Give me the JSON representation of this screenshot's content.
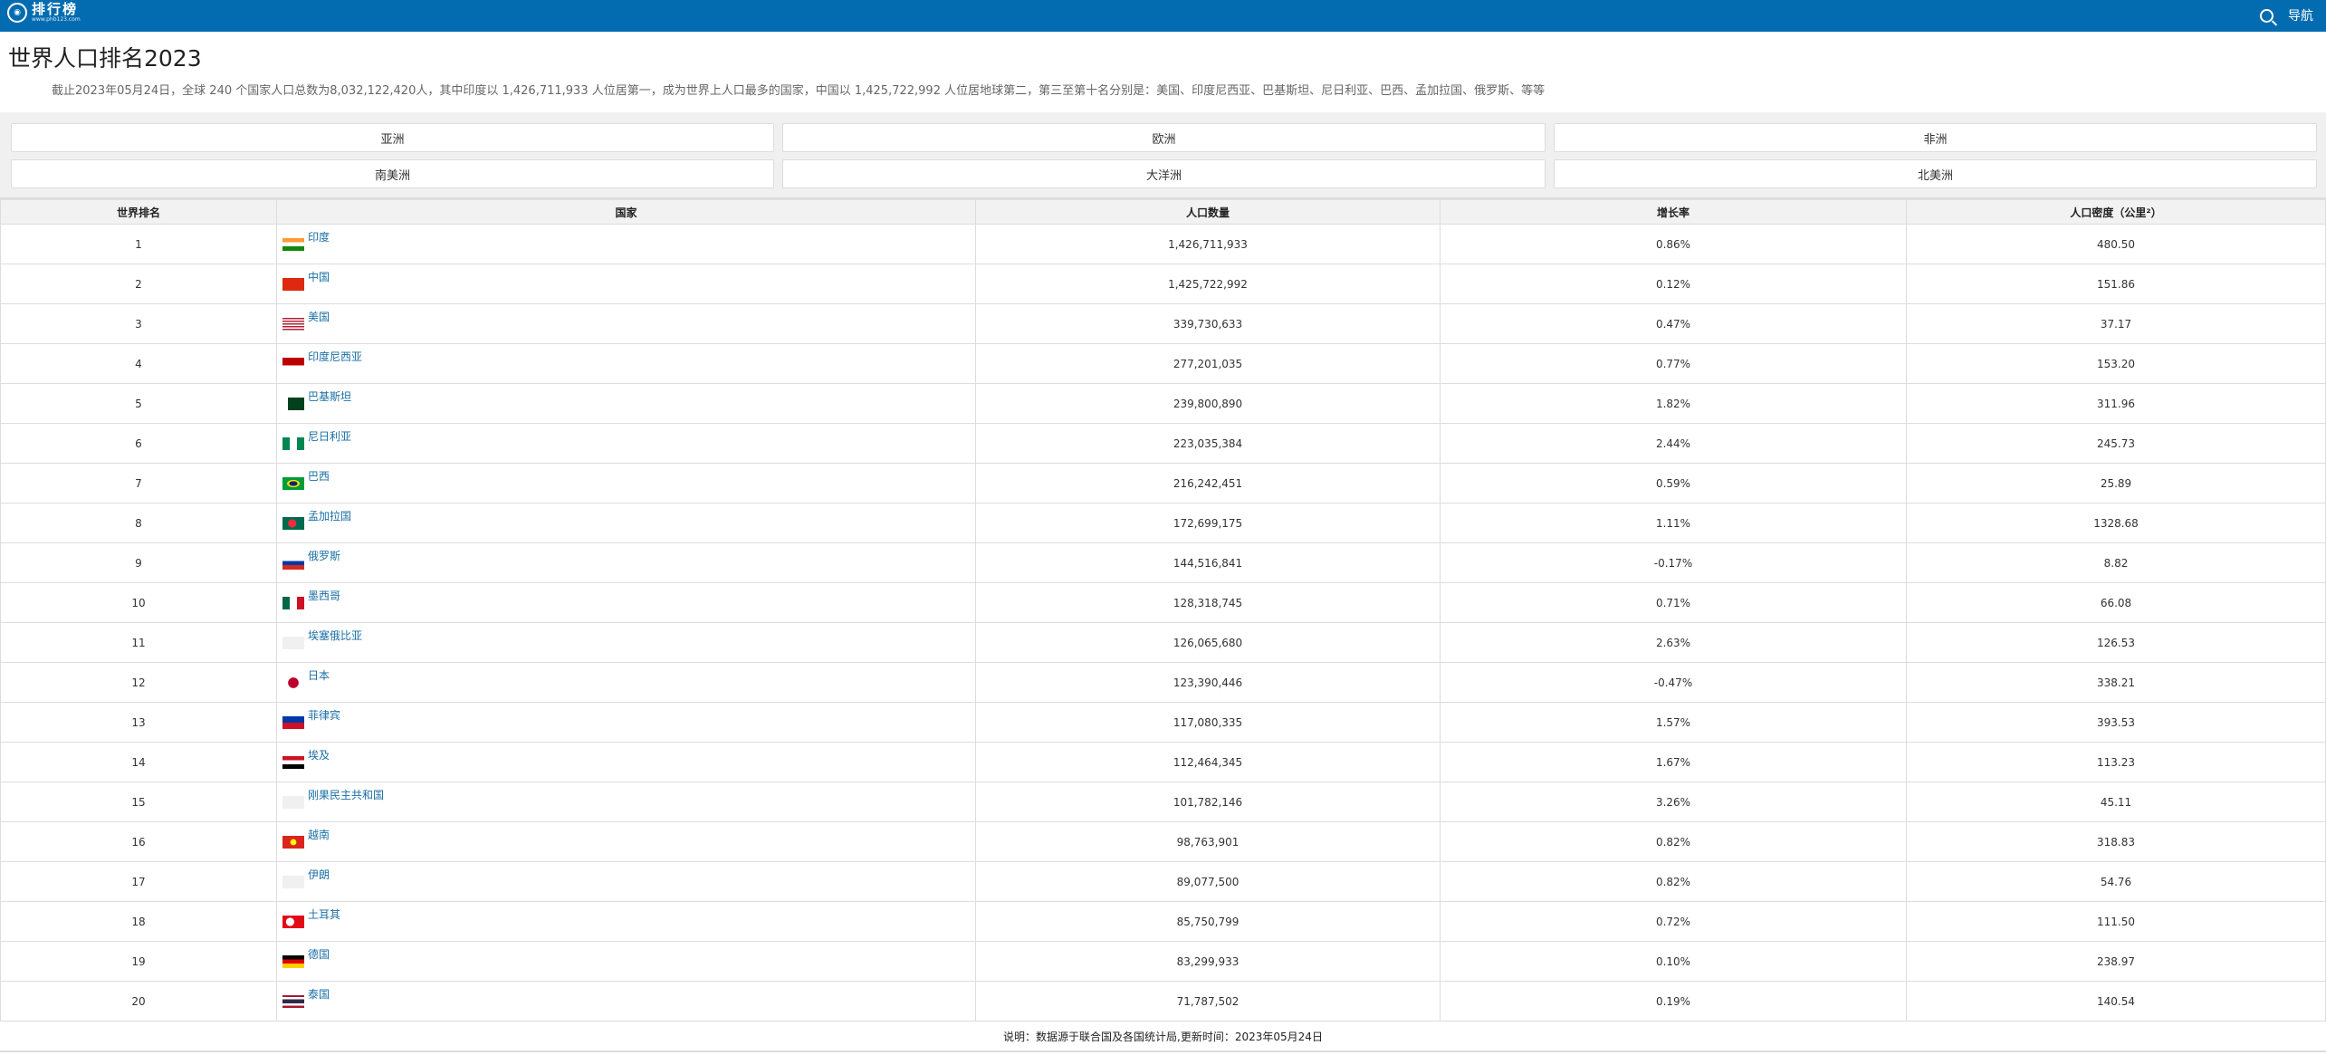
{
  "header": {
    "logo_text": "排行榜",
    "logo_url": "www.phb123.com",
    "nav_label": "导航"
  },
  "title": "世界人口排名2023",
  "description": "截止2023年05月24日，全球 240 个国家人口总数为8,032,122,420人，其中印度以 1,426,711,933 人位居第一，成为世界上人口最多的国家，中国以 1,425,722,992 人位居地球第二，第三至第十名分别是：美国、印度尼西亚、巴基斯坦、尼日利亚、巴西、孟加拉国、俄罗斯、等等",
  "regions": [
    "亚洲",
    "欧洲",
    "非洲",
    "南美洲",
    "大洋洲",
    "北美洲"
  ],
  "columns": [
    "世界排名",
    "国家",
    "人口数量",
    "增长率",
    "人口密度（公里²）"
  ],
  "rows": [
    {
      "rank": "1",
      "country": "印度",
      "flag": "india",
      "population": "1,426,711,933",
      "growth": "0.86%",
      "density": "480.50"
    },
    {
      "rank": "2",
      "country": "中国",
      "flag": "china",
      "population": "1,425,722,992",
      "growth": "0.12%",
      "density": "151.86"
    },
    {
      "rank": "3",
      "country": "美国",
      "flag": "usa",
      "population": "339,730,633",
      "growth": "0.47%",
      "density": "37.17"
    },
    {
      "rank": "4",
      "country": "印度尼西亚",
      "flag": "indonesia",
      "population": "277,201,035",
      "growth": "0.77%",
      "density": "153.20"
    },
    {
      "rank": "5",
      "country": "巴基斯坦",
      "flag": "pakistan",
      "population": "239,800,890",
      "growth": "1.82%",
      "density": "311.96"
    },
    {
      "rank": "6",
      "country": "尼日利亚",
      "flag": "nigeria",
      "population": "223,035,384",
      "growth": "2.44%",
      "density": "245.73"
    },
    {
      "rank": "7",
      "country": "巴西",
      "flag": "brazil",
      "population": "216,242,451",
      "growth": "0.59%",
      "density": "25.89"
    },
    {
      "rank": "8",
      "country": "孟加拉国",
      "flag": "bangladesh",
      "population": "172,699,175",
      "growth": "1.11%",
      "density": "1328.68"
    },
    {
      "rank": "9",
      "country": "俄罗斯",
      "flag": "russia",
      "population": "144,516,841",
      "growth": "-0.17%",
      "density": "8.82"
    },
    {
      "rank": "10",
      "country": "墨西哥",
      "flag": "mexico",
      "population": "128,318,745",
      "growth": "0.71%",
      "density": "66.08"
    },
    {
      "rank": "11",
      "country": "埃塞俄比亚",
      "flag": "placeholder",
      "population": "126,065,680",
      "growth": "2.63%",
      "density": "126.53"
    },
    {
      "rank": "12",
      "country": "日本",
      "flag": "japan",
      "population": "123,390,446",
      "growth": "-0.47%",
      "density": "338.21"
    },
    {
      "rank": "13",
      "country": "菲律宾",
      "flag": "philippines",
      "population": "117,080,335",
      "growth": "1.57%",
      "density": "393.53"
    },
    {
      "rank": "14",
      "country": "埃及",
      "flag": "egypt",
      "population": "112,464,345",
      "growth": "1.67%",
      "density": "113.23"
    },
    {
      "rank": "15",
      "country": "刚果民主共和国",
      "flag": "placeholder",
      "population": "101,782,146",
      "growth": "3.26%",
      "density": "45.11"
    },
    {
      "rank": "16",
      "country": "越南",
      "flag": "vietnam",
      "population": "98,763,901",
      "growth": "0.82%",
      "density": "318.83"
    },
    {
      "rank": "17",
      "country": "伊朗",
      "flag": "placeholder",
      "population": "89,077,500",
      "growth": "0.82%",
      "density": "54.76"
    },
    {
      "rank": "18",
      "country": "土耳其",
      "flag": "turkey",
      "population": "85,750,799",
      "growth": "0.72%",
      "density": "111.50"
    },
    {
      "rank": "19",
      "country": "德国",
      "flag": "germany",
      "population": "83,299,933",
      "growth": "0.10%",
      "density": "238.97"
    },
    {
      "rank": "20",
      "country": "泰国",
      "flag": "thailand",
      "population": "71,787,502",
      "growth": "0.19%",
      "density": "140.54"
    }
  ],
  "footer": "说明：数据源于联合国及各国统计局,更新时间：2023年05月24日",
  "colors": {
    "topbar": "#036cb1",
    "link": "#1a6fa5"
  }
}
